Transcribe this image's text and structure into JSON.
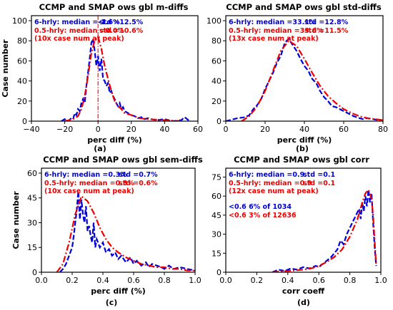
{
  "chart_data": [
    {
      "type": "line",
      "subplot": "(a)",
      "title": "CCMP and SMAP ows gbl m-diffs",
      "xlabel": "perc diff (%)",
      "ylabel": "Case number",
      "xlim": [
        -40,
        60
      ],
      "ylim": [
        0,
        105
      ],
      "xticks": [
        -40,
        -20,
        0,
        20,
        40,
        60
      ],
      "yticks": [
        0,
        20,
        40,
        60,
        80,
        100
      ],
      "xtick_labels": [
        "−40",
        "−20",
        "0",
        "20",
        "40",
        "60"
      ],
      "ytick_labels": [
        "0",
        "20",
        "40",
        "60",
        "80",
        "100"
      ],
      "annotations": [
        {
          "text": "6-hrly: median =-1.6%",
          "color": "#0000dd"
        },
        {
          "text": "std =12.5%",
          "color": "#0000dd"
        },
        {
          "text": "0.5-hrly: median =0.0%",
          "color": "#ee0000"
        },
        {
          "text": "std =10.6%",
          "color": "#ee0000"
        },
        {
          "text": "(10x case num at peak)",
          "color": "#ee0000"
        }
      ],
      "vline": 0,
      "series": [
        {
          "color": "#0000dd",
          "style": "dashed",
          "x": [
            -22,
            -20,
            -18,
            -16,
            -15,
            -14,
            -13,
            -12,
            -11,
            -10,
            -9,
            -8,
            -7,
            -6,
            -5,
            -4,
            -3,
            -2,
            -1,
            0,
            1,
            2,
            3,
            4,
            5,
            6,
            7,
            8,
            9,
            10,
            11,
            12,
            13,
            14,
            15,
            16,
            18,
            20,
            22,
            24,
            26,
            28,
            30,
            32,
            35,
            40,
            45,
            50,
            52,
            55
          ],
          "y": [
            0,
            2,
            0,
            3,
            2,
            8,
            6,
            12,
            10,
            18,
            22,
            18,
            35,
            48,
            62,
            78,
            82,
            70,
            55,
            65,
            50,
            62,
            42,
            40,
            35,
            38,
            28,
            30,
            25,
            22,
            18,
            15,
            18,
            12,
            14,
            10,
            8,
            6,
            5,
            3,
            4,
            2,
            3,
            2,
            1,
            2,
            0,
            1,
            4,
            0
          ]
        },
        {
          "color": "#ee0000",
          "style": "dashdot",
          "x": [
            -20,
            -15,
            -12,
            -10,
            -8,
            -6,
            -4,
            -2,
            0,
            2,
            4,
            6,
            8,
            10,
            12,
            14,
            16,
            20,
            25,
            30,
            40,
            50
          ],
          "y": [
            0,
            2,
            5,
            12,
            25,
            45,
            68,
            80,
            84,
            72,
            55,
            42,
            30,
            20,
            15,
            12,
            8,
            6,
            3,
            2,
            1,
            0
          ]
        }
      ]
    },
    {
      "type": "line",
      "subplot": "(b)",
      "title": "CCMP and SMAP ows gbl std-diffs",
      "xlabel": "perc diff (%)",
      "ylabel": "",
      "xlim": [
        0,
        80
      ],
      "ylim": [
        0,
        105
      ],
      "xticks": [
        0,
        20,
        40,
        60,
        80
      ],
      "yticks": [
        0,
        20,
        40,
        60,
        80,
        100
      ],
      "xtick_labels": [
        "0",
        "20",
        "40",
        "60",
        "80"
      ],
      "ytick_labels": [
        "0",
        "20",
        "40",
        "60",
        "80",
        "100"
      ],
      "annotations": [
        {
          "text": "6-hrly: median =33.1%",
          "color": "#0000dd"
        },
        {
          "text": "std =12.8%",
          "color": "#0000dd"
        },
        {
          "text": "0.5-hrly: median =33.6%",
          "color": "#ee0000"
        },
        {
          "text": "std =11.5%",
          "color": "#ee0000"
        },
        {
          "text": "(13x case num at peak)",
          "color": "#ee0000"
        }
      ],
      "series": [
        {
          "color": "#0000dd",
          "style": "dashed",
          "x": [
            0,
            6,
            10,
            12,
            14,
            16,
            18,
            20,
            22,
            24,
            26,
            28,
            30,
            32,
            34,
            36,
            38,
            40,
            42,
            44,
            46,
            48,
            50,
            52,
            54,
            56,
            58,
            60,
            62,
            65,
            68,
            70,
            72,
            75,
            78,
            80
          ],
          "y": [
            0,
            3,
            4,
            6,
            12,
            16,
            22,
            32,
            40,
            48,
            58,
            65,
            78,
            82,
            76,
            70,
            62,
            55,
            50,
            42,
            38,
            30,
            24,
            20,
            15,
            14,
            12,
            10,
            8,
            5,
            3,
            2,
            3,
            2,
            1,
            0
          ]
        },
        {
          "color": "#ee0000",
          "style": "dashdot",
          "x": [
            8,
            12,
            16,
            20,
            24,
            28,
            32,
            36,
            40,
            44,
            48,
            52,
            56,
            60,
            64,
            68,
            72,
            76,
            80
          ],
          "y": [
            0,
            5,
            15,
            30,
            50,
            70,
            80,
            75,
            62,
            48,
            35,
            25,
            18,
            12,
            8,
            5,
            3,
            2,
            1
          ]
        }
      ]
    },
    {
      "type": "line",
      "subplot": "(c)",
      "title": "CCMP and SMAP ows gbl sem-diffs",
      "xlabel": "perc diff (%)",
      "ylabel": "Case number",
      "xlim": [
        0,
        1
      ],
      "ylim": [
        0,
        63
      ],
      "xticks": [
        0,
        0.2,
        0.4,
        0.6,
        0.8,
        1.0
      ],
      "yticks": [
        0,
        15,
        30,
        45,
        60
      ],
      "xtick_labels": [
        "0.0",
        "0.2",
        "0.4",
        "0.6",
        "0.8",
        "1.0"
      ],
      "ytick_labels": [
        "0",
        "15",
        "30",
        "45",
        "60"
      ],
      "annotations": [
        {
          "text": "6-hrly: median =0.3%",
          "color": "#0000dd"
        },
        {
          "text": "std =0.7%",
          "color": "#0000dd"
        },
        {
          "text": "0.5-hrly: median =0.3%",
          "color": "#ee0000"
        },
        {
          "text": "std =0.6%",
          "color": "#ee0000"
        },
        {
          "text": "(10x case num at peak)",
          "color": "#ee0000"
        }
      ],
      "series": [
        {
          "color": "#0000dd",
          "style": "dashed",
          "x": [
            0.12,
            0.14,
            0.16,
            0.18,
            0.2,
            0.21,
            0.22,
            0.23,
            0.24,
            0.25,
            0.26,
            0.27,
            0.28,
            0.29,
            0.3,
            0.31,
            0.32,
            0.33,
            0.34,
            0.35,
            0.36,
            0.38,
            0.4,
            0.42,
            0.44,
            0.46,
            0.48,
            0.5,
            0.52,
            0.55,
            0.58,
            0.6,
            0.62,
            0.65,
            0.68,
            0.7,
            0.72,
            0.75,
            0.78,
            0.8,
            0.83,
            0.86,
            0.9,
            0.95,
            1.0
          ],
          "y": [
            0,
            2,
            5,
            10,
            15,
            22,
            30,
            38,
            49,
            32,
            44,
            35,
            30,
            40,
            25,
            28,
            22,
            18,
            30,
            15,
            20,
            15,
            18,
            12,
            14,
            10,
            12,
            8,
            10,
            6,
            9,
            5,
            7,
            4,
            6,
            3,
            5,
            4,
            3,
            2,
            4,
            2,
            3,
            2,
            1
          ]
        },
        {
          "color": "#ee0000",
          "style": "dashdot",
          "x": [
            0.1,
            0.14,
            0.18,
            0.22,
            0.26,
            0.3,
            0.34,
            0.38,
            0.42,
            0.46,
            0.5,
            0.55,
            0.6,
            0.65,
            0.7,
            0.75,
            0.8,
            0.85,
            0.9,
            0.95,
            1.0
          ],
          "y": [
            0,
            5,
            18,
            35,
            46,
            43,
            36,
            27,
            20,
            15,
            12,
            9,
            7,
            5,
            4,
            3,
            3,
            2,
            2,
            1,
            1
          ]
        }
      ]
    },
    {
      "type": "line",
      "subplot": "(d)",
      "title": "CCMP and SMAP ows gbl corr",
      "xlabel": "corr coeff",
      "ylabel": "",
      "xlim": [
        0,
        1
      ],
      "ylim": [
        0,
        82
      ],
      "xticks": [
        0,
        0.2,
        0.4,
        0.6,
        0.8,
        1.0
      ],
      "yticks": [
        0,
        15,
        30,
        45,
        60,
        75
      ],
      "xtick_labels": [
        "0.0",
        "0.2",
        "0.4",
        "0.6",
        "0.8",
        "1.0"
      ],
      "ytick_labels": [
        "0",
        "15",
        "30",
        "45",
        "60",
        "75"
      ],
      "annotations": [
        {
          "text": "6-hrly: median =0.9",
          "color": "#0000dd"
        },
        {
          "text": "std =0.1",
          "color": "#0000dd"
        },
        {
          "text": "0.5-hrly: median =0.9",
          "color": "#ee0000"
        },
        {
          "text": "std =0.1",
          "color": "#ee0000"
        },
        {
          "text": "(12x case num at peak)",
          "color": "#ee0000"
        },
        {
          "text": "<0.6 6% of 1034",
          "color": "#0000dd"
        },
        {
          "text": "<0.6 3% of 12636",
          "color": "#ee0000"
        }
      ],
      "series": [
        {
          "color": "#0000dd",
          "style": "dashed",
          "x": [
            0.3,
            0.34,
            0.38,
            0.42,
            0.46,
            0.5,
            0.54,
            0.58,
            0.6,
            0.62,
            0.64,
            0.66,
            0.68,
            0.7,
            0.72,
            0.74,
            0.76,
            0.78,
            0.8,
            0.82,
            0.84,
            0.86,
            0.87,
            0.88,
            0.89,
            0.9,
            0.91,
            0.92,
            0.93,
            0.94,
            0.95,
            0.96,
            0.97
          ],
          "y": [
            0,
            2,
            1,
            3,
            2,
            4,
            3,
            5,
            4,
            6,
            8,
            10,
            12,
            15,
            18,
            25,
            22,
            30,
            35,
            40,
            45,
            50,
            42,
            55,
            48,
            60,
            52,
            65,
            55,
            62,
            40,
            20,
            5
          ]
        },
        {
          "color": "#ee0000",
          "style": "dashdot",
          "x": [
            0.3,
            0.4,
            0.5,
            0.55,
            0.6,
            0.65,
            0.7,
            0.75,
            0.8,
            0.85,
            0.88,
            0.9,
            0.92,
            0.94,
            0.95,
            0.96,
            0.97
          ],
          "y": [
            0,
            1,
            2,
            3,
            5,
            8,
            12,
            18,
            28,
            42,
            55,
            62,
            65,
            58,
            45,
            25,
            5
          ]
        }
      ]
    }
  ]
}
